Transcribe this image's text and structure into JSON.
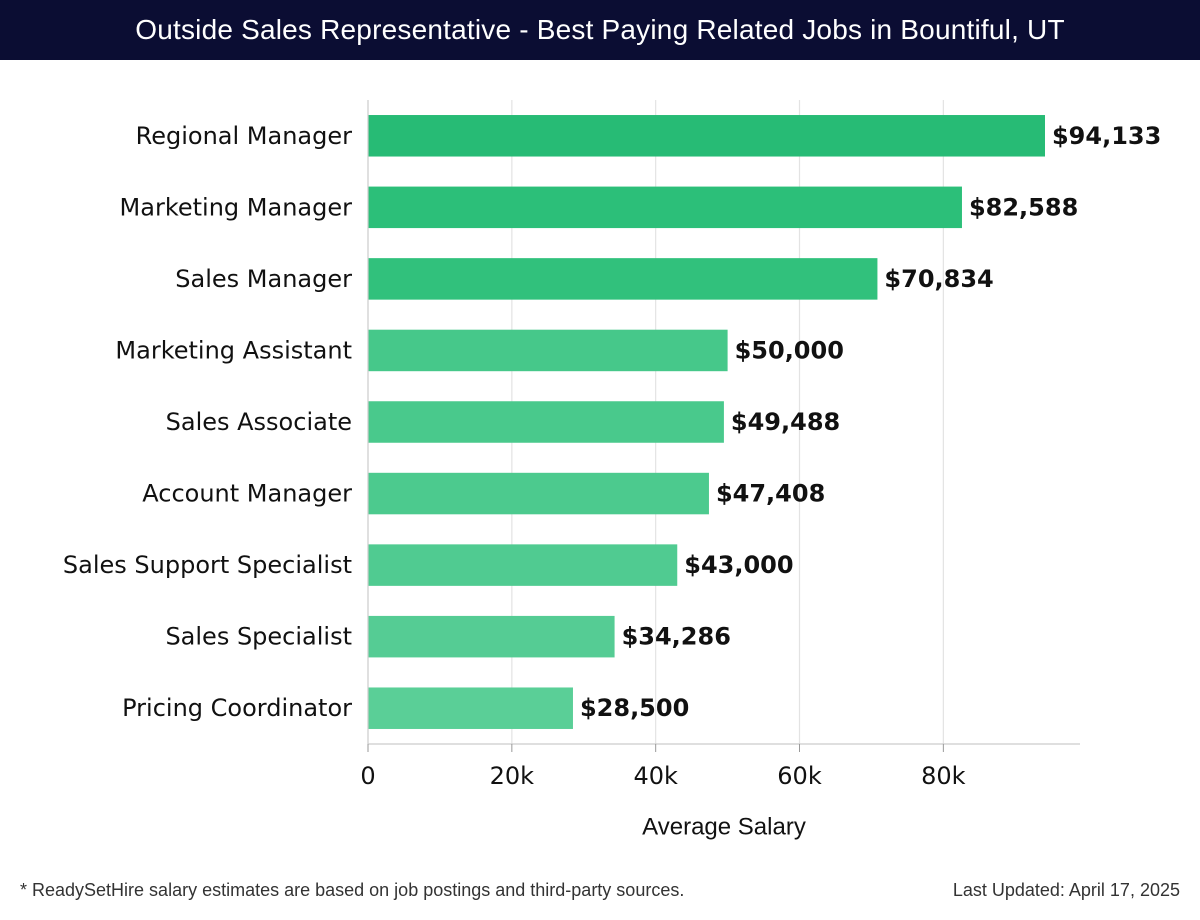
{
  "header": {
    "title": "Outside Sales Representative - Best Paying Related Jobs in Bountiful, UT",
    "background": "#0b0d33"
  },
  "footer": {
    "note": "* ReadySetHire salary estimates are based on job postings and third-party sources.",
    "updated": "Last Updated: April 17, 2025"
  },
  "chart_data": {
    "type": "bar",
    "orientation": "horizontal",
    "title": "Outside Sales Representative - Best Paying Related Jobs in Bountiful, UT",
    "xlabel": "Average Salary",
    "ylabel": "",
    "categories": [
      "Regional Manager",
      "Marketing Manager",
      "Sales Manager",
      "Marketing Assistant",
      "Sales Associate",
      "Account Manager",
      "Sales Support Specialist",
      "Sales Specialist",
      "Pricing Coordinator"
    ],
    "values": [
      94133,
      82588,
      70834,
      50000,
      49488,
      47408,
      43000,
      34286,
      28500
    ],
    "value_labels": [
      "$94,133",
      "$82,588",
      "$70,834",
      "$50,000",
      "$49,488",
      "$47,408",
      "$43,000",
      "$34,286",
      "$28,500"
    ],
    "xticks": [
      0,
      20000,
      40000,
      60000,
      80000
    ],
    "xtick_labels": [
      "0",
      "20k",
      "40k",
      "60k",
      "80k"
    ],
    "xlim": [
      0,
      99000
    ],
    "grid": true,
    "bar_colors": [
      "#27bb75",
      "#2cbf79",
      "#31c17c",
      "#46c88a",
      "#49c98c",
      "#4cca8e",
      "#50cb91",
      "#55cc94",
      "#5acf97"
    ]
  }
}
